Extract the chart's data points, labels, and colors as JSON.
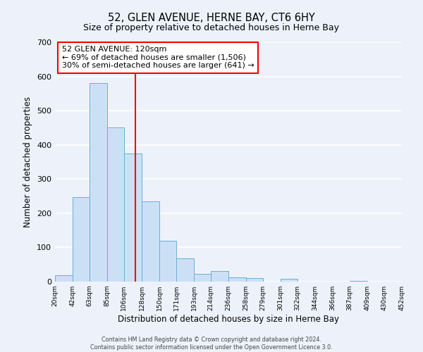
{
  "title": "52, GLEN AVENUE, HERNE BAY, CT6 6HY",
  "subtitle": "Size of property relative to detached houses in Herne Bay",
  "xlabel": "Distribution of detached houses by size in Herne Bay",
  "ylabel": "Number of detached properties",
  "bar_edges": [
    20,
    42,
    63,
    85,
    106,
    128,
    150,
    171,
    193,
    214,
    236,
    258,
    279,
    301,
    322,
    344,
    366,
    387,
    409,
    430,
    452
  ],
  "bar_heights": [
    18,
    248,
    580,
    450,
    375,
    235,
    120,
    67,
    22,
    30,
    12,
    10,
    0,
    8,
    0,
    0,
    0,
    3,
    0,
    0
  ],
  "bar_color": "#cce0f5",
  "bar_edge_color": "#6aaed6",
  "vline_x": 120,
  "vline_color": "red",
  "ylim": [
    0,
    700
  ],
  "yticks": [
    0,
    100,
    200,
    300,
    400,
    500,
    600,
    700
  ],
  "annotation_title": "52 GLEN AVENUE: 120sqm",
  "annotation_line1": "← 69% of detached houses are smaller (1,506)",
  "annotation_line2": "30% of semi-detached houses are larger (641) →",
  "annotation_box_color": "white",
  "annotation_box_edge_color": "red",
  "footer_line1": "Contains HM Land Registry data © Crown copyright and database right 2024.",
  "footer_line2": "Contains public sector information licensed under the Open Government Licence 3.0.",
  "background_color": "#edf2fa",
  "grid_color": "white"
}
